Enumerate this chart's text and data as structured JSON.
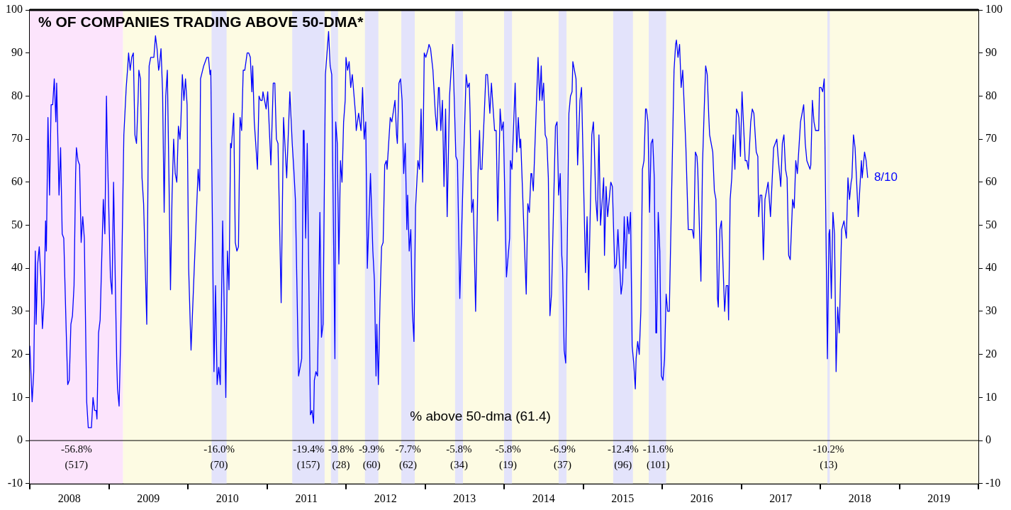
{
  "chart_data": {
    "type": "line",
    "title": "% OF COMPANIES TRADING ABOVE 50-DMA*",
    "x": [
      2008.0,
      2008.03,
      2008.05,
      2008.07,
      2008.08,
      2008.1,
      2008.12,
      2008.14,
      2008.16,
      2008.18,
      2008.2,
      2008.21,
      2008.23,
      2008.25,
      2008.27,
      2008.29,
      2008.31,
      2008.33,
      2008.34,
      2008.37,
      2008.39,
      2008.41,
      2008.43,
      2008.46,
      2008.48,
      2008.5,
      2008.52,
      2008.54,
      2008.56,
      2008.58,
      2008.59,
      2008.61,
      2008.63,
      2008.65,
      2008.67,
      2008.69,
      2008.72,
      2008.74,
      2008.76,
      2008.78,
      2008.8,
      2008.82,
      2008.84,
      2008.85,
      2008.87,
      2008.89,
      2008.93,
      2008.95,
      2008.97,
      2008.98,
      2009.02,
      2009.04,
      2009.06,
      2009.1,
      2009.11,
      2009.13,
      2009.15,
      2009.19,
      2009.22,
      2009.24,
      2009.25,
      2009.27,
      2009.29,
      2009.31,
      2009.33,
      2009.35,
      2009.37,
      2009.38,
      2009.4,
      2009.42,
      2009.44,
      2009.48,
      2009.5,
      2009.51,
      2009.53,
      2009.55,
      2009.57,
      2009.59,
      2009.61,
      2009.63,
      2009.64,
      2009.66,
      2009.68,
      2009.7,
      2009.72,
      2009.74,
      2009.76,
      2009.78,
      2009.8,
      2009.82,
      2009.84,
      2009.86,
      2009.88,
      2009.9,
      2009.91,
      2009.93,
      2009.95,
      2009.97,
      2009.99,
      2010.01,
      2010.03,
      2010.04,
      2010.13,
      2010.15,
      2010.16,
      2010.2,
      2010.24,
      2010.26,
      2010.28,
      2010.29,
      2010.33,
      2010.35,
      2010.37,
      2010.39,
      2010.41,
      2010.44,
      2010.48,
      2010.5,
      2010.52,
      2010.54,
      2010.55,
      2010.58,
      2010.6,
      2010.62,
      2010.64,
      2010.66,
      2010.68,
      2010.7,
      2010.72,
      2010.75,
      2010.77,
      2010.79,
      2010.81,
      2010.82,
      2010.84,
      2010.88,
      2010.9,
      2010.92,
      2010.94,
      2010.95,
      2010.99,
      2011.01,
      2011.05,
      2011.08,
      2011.1,
      2011.12,
      2011.14,
      2011.18,
      2011.21,
      2011.25,
      2011.29,
      2011.32,
      2011.34,
      2011.36,
      2011.4,
      2011.44,
      2011.46,
      2011.47,
      2011.49,
      2011.51,
      2011.55,
      2011.57,
      2011.59,
      2011.6,
      2011.62,
      2011.64,
      2011.67,
      2011.69,
      2011.71,
      2011.74,
      2011.78,
      2011.8,
      2011.82,
      2011.86,
      2011.87,
      2011.89,
      2011.91,
      2011.93,
      2011.95,
      2011.97,
      2011.99,
      2012.0,
      2012.02,
      2012.04,
      2012.06,
      2012.08,
      2012.12,
      2012.13,
      2012.16,
      2012.19,
      2012.21,
      2012.23,
      2012.25,
      2012.27,
      2012.31,
      2012.34,
      2012.36,
      2012.38,
      2012.39,
      2012.41,
      2012.43,
      2012.45,
      2012.47,
      2012.49,
      2012.51,
      2012.52,
      2012.56,
      2012.58,
      2012.62,
      2012.64,
      2012.65,
      2012.67,
      2012.69,
      2012.71,
      2012.73,
      2012.75,
      2012.77,
      2012.78,
      2012.8,
      2012.82,
      2012.84,
      2012.86,
      2012.88,
      2012.91,
      2012.93,
      2012.95,
      2012.97,
      2012.99,
      2013.01,
      2013.04,
      2013.05,
      2013.07,
      2013.1,
      2013.13,
      2013.15,
      2013.17,
      2013.18,
      2013.2,
      2013.22,
      2013.24,
      2013.26,
      2013.28,
      2013.31,
      2013.35,
      2013.39,
      2013.41,
      2013.44,
      2013.48,
      2013.52,
      2013.54,
      2013.56,
      2013.57,
      2013.59,
      2013.61,
      2013.64,
      2013.67,
      2013.69,
      2013.7,
      2013.72,
      2013.77,
      2013.79,
      2013.82,
      2013.84,
      2013.88,
      2013.9,
      2013.92,
      2013.95,
      2013.97,
      2013.99,
      2014.03,
      2014.07,
      2014.08,
      2014.1,
      2014.14,
      2014.16,
      2014.18,
      2014.2,
      2014.21,
      2014.28,
      2014.3,
      2014.32,
      2014.34,
      2014.35,
      2014.37,
      2014.43,
      2014.45,
      2014.47,
      2014.48,
      2014.5,
      2014.52,
      2014.54,
      2014.56,
      2014.58,
      2014.6,
      2014.65,
      2014.67,
      2014.69,
      2014.71,
      2014.73,
      2014.74,
      2014.76,
      2014.78,
      2014.82,
      2014.84,
      2014.86,
      2014.87,
      2014.91,
      2014.93,
      2014.96,
      2014.98,
      2015.03,
      2015.05,
      2015.07,
      2015.11,
      2015.13,
      2015.14,
      2015.16,
      2015.18,
      2015.2,
      2015.22,
      2015.26,
      2015.27,
      2015.29,
      2015.31,
      2015.35,
      2015.37,
      2015.39,
      2015.4,
      2015.42,
      2015.44,
      2015.48,
      2015.5,
      2015.52,
      2015.54,
      2015.56,
      2015.58,
      2015.6,
      2015.62,
      2015.64,
      2015.66,
      2015.67,
      2015.69,
      2015.71,
      2015.73,
      2015.75,
      2015.77,
      2015.79,
      2015.8,
      2015.82,
      2015.84,
      2015.86,
      2015.88,
      2015.9,
      2015.92,
      2015.93,
      2015.95,
      2015.97,
      2015.99,
      2016.01,
      2016.03,
      2016.05,
      2016.07,
      2016.09,
      2016.15,
      2016.17,
      2016.18,
      2016.2,
      2016.22,
      2016.24,
      2016.26,
      2016.3,
      2016.33,
      2016.38,
      2016.4,
      2016.42,
      2016.44,
      2016.45,
      2016.49,
      2016.51,
      2016.53,
      2016.55,
      2016.57,
      2016.59,
      2016.6,
      2016.64,
      2016.66,
      2016.68,
      2016.7,
      2016.71,
      2016.73,
      2016.75,
      2016.79,
      2016.81,
      2016.83,
      2016.84,
      2016.86,
      2016.88,
      2016.9,
      2016.92,
      2016.94,
      2016.96,
      2016.97,
      2016.99,
      2017.01,
      2017.05,
      2017.07,
      2017.09,
      2017.12,
      2017.14,
      2017.16,
      2017.19,
      2017.21,
      2017.22,
      2017.24,
      2017.26,
      2017.28,
      2017.3,
      2017.34,
      2017.37,
      2017.41,
      2017.43,
      2017.45,
      2017.47,
      2017.5,
      2017.52,
      2017.54,
      2017.56,
      2017.58,
      2017.6,
      2017.62,
      2017.65,
      2017.67,
      2017.69,
      2017.71,
      2017.75,
      2017.79,
      2017.81,
      2017.83,
      2017.85,
      2017.87,
      2017.88,
      2017.9,
      2017.92,
      2017.94,
      2017.96,
      2017.98,
      2017.99,
      2018.01,
      2018.03,
      2018.05,
      2018.09,
      2018.11,
      2018.12,
      2018.14,
      2018.16,
      2018.18,
      2018.2,
      2018.22,
      2018.24,
      2018.27,
      2018.3,
      2018.33,
      2018.35,
      2018.37,
      2018.39,
      2018.4,
      2018.42,
      2018.44,
      2018.48,
      2018.52,
      2018.53,
      2018.56,
      2018.58,
      2018.6
    ],
    "series": [
      {
        "color": "#0000ff",
        "values": [
          22,
          9,
          16,
          44,
          27,
          41,
          45,
          38,
          26,
          32,
          51,
          44,
          75,
          57,
          78,
          78,
          84,
          74,
          83,
          57,
          68,
          48,
          47,
          26,
          13,
          14,
          27,
          29,
          36,
          62,
          68,
          65,
          64,
          46,
          52,
          47,
          9,
          3,
          3,
          3,
          10,
          7,
          7,
          5,
          25,
          28,
          56,
          48,
          80,
          69,
          38,
          34,
          60,
          18,
          12,
          8,
          24,
          71,
          82,
          87,
          90,
          86,
          89,
          90,
          71,
          69,
          79,
          86,
          84,
          61,
          55,
          27,
          71,
          87,
          89,
          89,
          89,
          94,
          91,
          86,
          87,
          91,
          81,
          53,
          80,
          86,
          62,
          35,
          57,
          70,
          62,
          60,
          73,
          70,
          73,
          85,
          79,
          84,
          78,
          40,
          27,
          21,
          63,
          58,
          84,
          87,
          89,
          89,
          85,
          86,
          16,
          36,
          13,
          17,
          13,
          51,
          10,
          44,
          35,
          69,
          68,
          76,
          46,
          44,
          45,
          75,
          72,
          86,
          86,
          90,
          90,
          89,
          81,
          87,
          74,
          63,
          80,
          79,
          79,
          81,
          77,
          81,
          64,
          83,
          83,
          70,
          69,
          32,
          75,
          61,
          81,
          69,
          63,
          56,
          15,
          19,
          72,
          72,
          47,
          69,
          6,
          7,
          4,
          14,
          16,
          15,
          53,
          24,
          27,
          85,
          95,
          87,
          85,
          19,
          74,
          69,
          41,
          65,
          60,
          74,
          79,
          89,
          86,
          88,
          82,
          85,
          76,
          72,
          76,
          72,
          82,
          70,
          74,
          40,
          62,
          44,
          37,
          15,
          27,
          13,
          32,
          45,
          46,
          64,
          65,
          63,
          75,
          74,
          79,
          71,
          69,
          83,
          84,
          79,
          62,
          69,
          49,
          57,
          44,
          49,
          30,
          23,
          54,
          65,
          63,
          77,
          60,
          90,
          89,
          91,
          92,
          91,
          86,
          76,
          72,
          82,
          82,
          72,
          79,
          59,
          77,
          52,
          80,
          92,
          66,
          65,
          33,
          60,
          85,
          82,
          83,
          76,
          53,
          56,
          30,
          62,
          72,
          63,
          63,
          85,
          85,
          76,
          83,
          72,
          72,
          51,
          77,
          72,
          74,
          38,
          47,
          65,
          63,
          83,
          67,
          75,
          68,
          70,
          34,
          55,
          53,
          62,
          62,
          58,
          89,
          79,
          87,
          79,
          83,
          71,
          70,
          61,
          29,
          34,
          73,
          74,
          57,
          62,
          43,
          40,
          21,
          18,
          76,
          80,
          81,
          88,
          84,
          64,
          79,
          82,
          39,
          52,
          35,
          71,
          74,
          69,
          56,
          51,
          71,
          50,
          61,
          43,
          59,
          52,
          60,
          59,
          46,
          40,
          41,
          49,
          34,
          37,
          52,
          40,
          52,
          48,
          53,
          22,
          18,
          12,
          19,
          23,
          20,
          30,
          63,
          65,
          77,
          77,
          74,
          53,
          69,
          70,
          61,
          25,
          25,
          53,
          44,
          15,
          14,
          19,
          34,
          30,
          30,
          86,
          92,
          93,
          89,
          92,
          82,
          86,
          68,
          49,
          49,
          47,
          67,
          66,
          63,
          37,
          64,
          76,
          87,
          85,
          75,
          71,
          67,
          58,
          56,
          33,
          31,
          49,
          51,
          30,
          36,
          36,
          28,
          56,
          61,
          71,
          63,
          77,
          76,
          75,
          66,
          81,
          65,
          65,
          63,
          74,
          77,
          76,
          67,
          66,
          52,
          57,
          57,
          42,
          56,
          60,
          52,
          68,
          69,
          70,
          65,
          59,
          69,
          71,
          63,
          61,
          43,
          42,
          56,
          54,
          65,
          62,
          74,
          78,
          69,
          65,
          64,
          63,
          64,
          79,
          74,
          72,
          72,
          72,
          82,
          82,
          81,
          84,
          19,
          48,
          49,
          33,
          53,
          48,
          16,
          31,
          25,
          49,
          51,
          47,
          61,
          56,
          60,
          61,
          71,
          68,
          52,
          65,
          61,
          67,
          65,
          61
        ]
      }
    ],
    "xlim": [
      2008,
      2020
    ],
    "xticks": [
      {
        "value": 2008,
        "label": null
      },
      {
        "value": 2008.5,
        "label": "2008"
      },
      {
        "value": 2009,
        "label": null
      },
      {
        "value": 2009.5,
        "label": "2009"
      },
      {
        "value": 2010,
        "label": null
      },
      {
        "value": 2010.5,
        "label": "2010"
      },
      {
        "value": 2011,
        "label": null
      },
      {
        "value": 2011.5,
        "label": "2011"
      },
      {
        "value": 2012,
        "label": null
      },
      {
        "value": 2012.5,
        "label": "2012"
      },
      {
        "value": 2013,
        "label": null
      },
      {
        "value": 2013.5,
        "label": "2013"
      },
      {
        "value": 2014,
        "label": null
      },
      {
        "value": 2014.5,
        "label": "2014"
      },
      {
        "value": 2015,
        "label": null
      },
      {
        "value": 2015.5,
        "label": "2015"
      },
      {
        "value": 2016,
        "label": null
      },
      {
        "value": 2016.5,
        "label": "2016"
      },
      {
        "value": 2017,
        "label": null
      },
      {
        "value": 2017.5,
        "label": "2017"
      },
      {
        "value": 2018,
        "label": null
      },
      {
        "value": 2018.5,
        "label": "2018"
      },
      {
        "value": 2019,
        "label": null
      },
      {
        "value": 2019.5,
        "label": "2019"
      },
      {
        "value": 2020,
        "label": null
      }
    ],
    "ylim": [
      -10,
      100
    ],
    "yticks": [
      -10,
      0,
      10,
      20,
      30,
      40,
      50,
      60,
      70,
      80,
      90,
      100
    ],
    "y2lim": [
      -10,
      100
    ],
    "y2ticks": [
      -10,
      0,
      10,
      20,
      30,
      40,
      50,
      60,
      70,
      80,
      90,
      100
    ],
    "ref_lines": [
      {
        "axis": "y",
        "value": 0,
        "color": "#000000"
      }
    ],
    "bands": [
      {
        "axis": "x",
        "from": 2008,
        "to": 2009.18,
        "label": "-56.8%\n(517)",
        "color": "#fce4fc"
      },
      {
        "axis": "x",
        "from": 2009.18,
        "to": 2020,
        "color": "#fdfbe3"
      },
      {
        "axis": "x",
        "from": 2010.3,
        "to": 2010.49,
        "label": "-16.0%\n(70)",
        "color": "#e3e3fb"
      },
      {
        "axis": "x",
        "from": 2011.32,
        "to": 2011.73,
        "label": "-19.4%\n(157)",
        "color": "#e3e3fb"
      },
      {
        "axis": "x",
        "from": 2011.81,
        "to": 2011.9,
        "label": "-9.8%\n(28)",
        "color": "#e3e3fb"
      },
      {
        "axis": "x",
        "from": 2012.24,
        "to": 2012.41,
        "label": "-9.9%\n(60)",
        "color": "#e3e3fb"
      },
      {
        "axis": "x",
        "from": 2012.7,
        "to": 2012.87,
        "label": "-7.7%\n(62)",
        "color": "#e3e3fb"
      },
      {
        "axis": "x",
        "from": 2013.38,
        "to": 2013.48,
        "label": "-5.8%\n(34)",
        "color": "#e3e3fb"
      },
      {
        "axis": "x",
        "from": 2014,
        "to": 2014.1,
        "label": "-5.8%\n(19)",
        "color": "#e3e3fb"
      },
      {
        "axis": "x",
        "from": 2014.69,
        "to": 2014.79,
        "label": "-6.9%\n(37)",
        "color": "#e3e3fb"
      },
      {
        "axis": "x",
        "from": 2015.38,
        "to": 2015.63,
        "label": "-12.4%\n(96)",
        "color": "#e3e3fb"
      },
      {
        "axis": "x",
        "from": 2015.83,
        "to": 2016.05,
        "label": "-11.6%\n(101)",
        "color": "#e3e3fb"
      },
      {
        "axis": "x",
        "from": 2018.09,
        "to": 2018.12,
        "label": "-10.2%\n(13)",
        "color": "#e3e3fb"
      }
    ],
    "annotations": [
      "% above 50-dma (61.4)",
      {
        "text": "8/10",
        "x": 2018.6,
        "y": 61
      }
    ],
    "grid": false,
    "legend": false,
    "marker": "none",
    "line_style": "solid"
  }
}
